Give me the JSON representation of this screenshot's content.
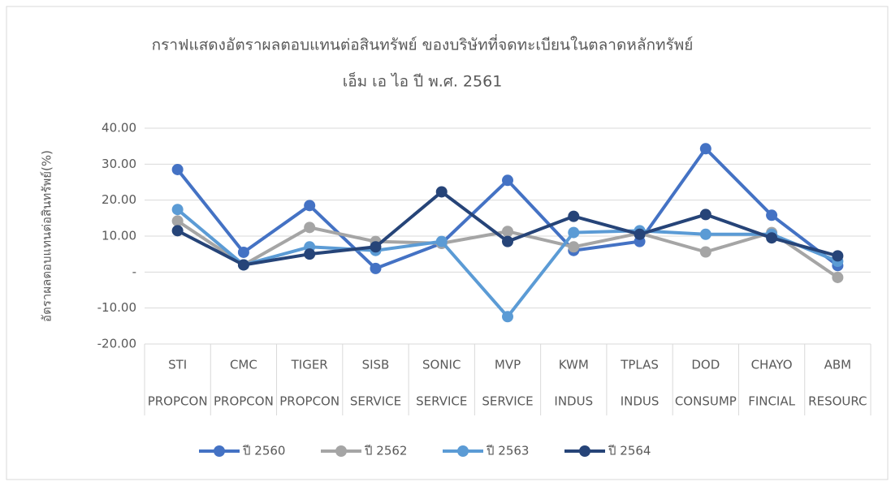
{
  "chart_data": {
    "type": "line",
    "title": "กราฟแสดงอัตราผลตอบแทนต่อสินทรัพย์ ของบริษัทที่จดทะเบียนในตลาดหลักทรัพย์",
    "subtitle": "เอ็ม เอ ไอ ปี พ.ศ. 2561",
    "y_label": "อัตราผลตอบแทนต่อสินทรัพย์(%)",
    "categories": [
      [
        "STI",
        "PROPCON"
      ],
      [
        "CMC",
        "PROPCON"
      ],
      [
        "TIGER",
        "PROPCON"
      ],
      [
        "SISB",
        "SERVICE"
      ],
      [
        "SONIC",
        "SERVICE"
      ],
      [
        "MVP",
        "SERVICE"
      ],
      [
        "KWM",
        "INDUS"
      ],
      [
        "TPLAS",
        "INDUS"
      ],
      [
        "DOD",
        "CONSUMP"
      ],
      [
        "CHAYO",
        "FINCIAL"
      ],
      [
        "ABM",
        "RESOURC"
      ]
    ],
    "series": [
      {
        "name": "ปี 2560",
        "color": "#4472c4",
        "values": [
          28.5,
          5.5,
          18.5,
          1,
          8,
          25.5,
          6,
          8.5,
          34.3,
          15.8,
          1.8
        ]
      },
      {
        "name": "ปี 2562",
        "color": "#a5a5a5",
        "values": [
          14.2,
          2,
          12.4,
          8.5,
          8,
          11.3,
          7,
          10.8,
          5.6,
          11,
          -1.5
        ]
      },
      {
        "name": "ปี 2563",
        "color": "#5b9bd5",
        "values": [
          17.4,
          2,
          7,
          6,
          8.5,
          -12.4,
          11,
          11.5,
          10.5,
          10.5,
          3
        ]
      },
      {
        "name": "ปี 2564",
        "color": "#264478",
        "values": [
          11.5,
          2,
          5,
          7,
          22.3,
          8.5,
          15.5,
          10.5,
          16,
          9.5,
          4.5
        ]
      }
    ],
    "ylim": [
      -20,
      40
    ],
    "yticks": [
      {
        "value": -20,
        "label": "-20.00"
      },
      {
        "value": -10,
        "label": "-10.00"
      },
      {
        "value": 0,
        "label": "-"
      },
      {
        "value": 10,
        "label": "10.00"
      },
      {
        "value": 20,
        "label": "20.00"
      },
      {
        "value": 30,
        "label": "30.00"
      },
      {
        "value": 40,
        "label": "40.00"
      }
    ],
    "grid": true,
    "legend": "bottom"
  }
}
